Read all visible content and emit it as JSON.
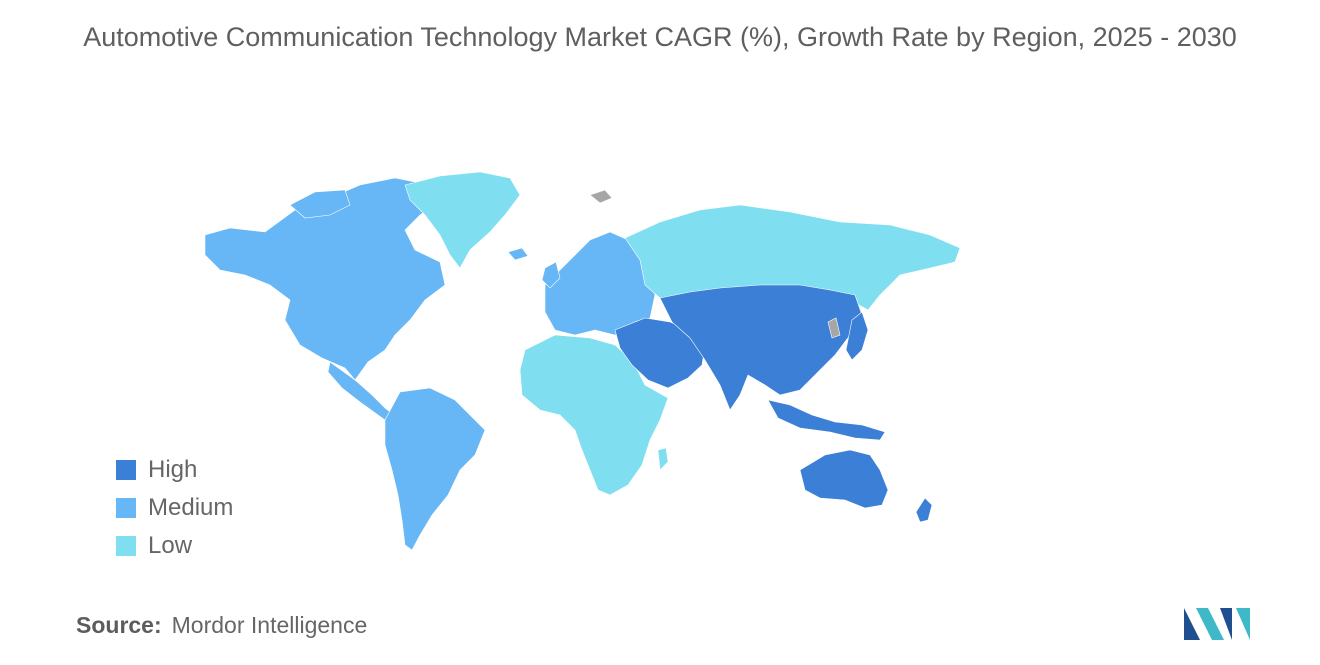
{
  "title": "Automotive Communication Technology Market CAGR (%), Growth Rate by Region, 2025 - 2030",
  "legend": {
    "items": [
      {
        "label": "High",
        "color": "#3b7fd6"
      },
      {
        "label": "Medium",
        "color": "#67b6f5"
      },
      {
        "label": "Low",
        "color": "#7fdff0"
      }
    ]
  },
  "regions": [
    {
      "name": "North America",
      "level": "Medium"
    },
    {
      "name": "South America",
      "level": "Medium"
    },
    {
      "name": "Europe",
      "level": "Medium"
    },
    {
      "name": "Asia Pacific",
      "level": "High"
    },
    {
      "name": "Middle East",
      "level": "High"
    },
    {
      "name": "Australia and New Zealand",
      "level": "High"
    },
    {
      "name": "Africa",
      "level": "Low"
    },
    {
      "name": "Russia",
      "level": "Low"
    },
    {
      "name": "Greenland",
      "level": "Low"
    }
  ],
  "source": {
    "label": "Source:",
    "value": "Mordor Intelligence"
  },
  "colors": {
    "no_data": "#a6a6a6",
    "logo_primary": "#1f4f8f",
    "logo_accent": "#3fb8c8"
  },
  "icons": {
    "logo": "mordor-intelligence-logo-icon"
  }
}
